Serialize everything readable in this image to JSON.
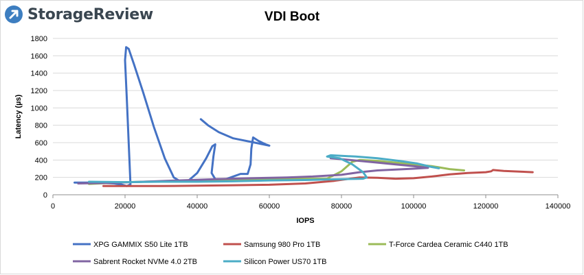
{
  "brand": {
    "name": "StorageReview",
    "logo_color": "#3d7ec0"
  },
  "chart_data": {
    "type": "line",
    "title": "VDI Boot",
    "xlabel": "IOPS",
    "ylabel": "Latency (µs)",
    "xlim": [
      0,
      140000
    ],
    "ylim": [
      0,
      1800
    ],
    "xticks": [
      0,
      20000,
      40000,
      60000,
      80000,
      100000,
      120000,
      140000
    ],
    "yticks": [
      0,
      200,
      400,
      600,
      800,
      1000,
      1200,
      1400,
      1600,
      1800
    ],
    "grid": {
      "horizontal": true,
      "vertical": false
    },
    "legend_position": "bottom",
    "series": [
      {
        "name": "XPG GAMMIX S50 Lite 1TB",
        "color": "#4472c4",
        "points": [
          [
            6000,
            140
          ],
          [
            10000,
            140
          ],
          [
            14000,
            135
          ],
          [
            17000,
            130
          ],
          [
            19000,
            118
          ],
          [
            20500,
            100
          ],
          [
            21500,
            120
          ],
          [
            21000,
            600
          ],
          [
            20500,
            1100
          ],
          [
            20000,
            1550
          ],
          [
            20300,
            1700
          ],
          [
            21000,
            1680
          ],
          [
            22500,
            1500
          ],
          [
            25000,
            1180
          ],
          [
            28000,
            780
          ],
          [
            31000,
            420
          ],
          [
            33500,
            200
          ],
          [
            35500,
            150
          ],
          [
            37500,
            160
          ],
          [
            40000,
            250
          ],
          [
            42500,
            420
          ],
          [
            44200,
            560
          ],
          [
            45000,
            580
          ],
          [
            44500,
            440
          ],
          [
            44000,
            250
          ],
          [
            45000,
            180
          ],
          [
            48000,
            180
          ],
          [
            52000,
            240
          ],
          [
            54000,
            240
          ],
          [
            54800,
            350
          ],
          [
            55000,
            530
          ],
          [
            55500,
            660
          ],
          [
            57000,
            620
          ],
          [
            59000,
            580
          ],
          [
            60000,
            565
          ],
          [
            56000,
            600
          ],
          [
            50000,
            650
          ],
          [
            46000,
            720
          ],
          [
            43000,
            800
          ],
          [
            41000,
            870
          ]
        ]
      },
      {
        "name": "Samsung 980 Pro 1TB",
        "color": "#c0504d",
        "points": [
          [
            14000,
            100
          ],
          [
            20000,
            100
          ],
          [
            30000,
            100
          ],
          [
            40000,
            105
          ],
          [
            50000,
            110
          ],
          [
            60000,
            115
          ],
          [
            70000,
            130
          ],
          [
            78000,
            160
          ],
          [
            85000,
            200
          ],
          [
            90000,
            195
          ],
          [
            95000,
            185
          ],
          [
            100000,
            190
          ],
          [
            105000,
            210
          ],
          [
            110000,
            235
          ],
          [
            115000,
            250
          ],
          [
            120000,
            260
          ],
          [
            121500,
            270
          ],
          [
            122000,
            285
          ],
          [
            125000,
            275
          ],
          [
            130000,
            265
          ],
          [
            133000,
            260
          ]
        ]
      },
      {
        "name": "T-Force Cardea Ceramic C440 1TB",
        "color": "#9bbb59",
        "points": [
          [
            10000,
            125
          ],
          [
            20000,
            145
          ],
          [
            30000,
            155
          ],
          [
            40000,
            160
          ],
          [
            50000,
            170
          ],
          [
            60000,
            180
          ],
          [
            70000,
            185
          ],
          [
            76000,
            185
          ],
          [
            80000,
            270
          ],
          [
            83000,
            380
          ],
          [
            85000,
            400
          ],
          [
            90000,
            390
          ],
          [
            95000,
            370
          ],
          [
            100000,
            350
          ],
          [
            105000,
            330
          ],
          [
            110000,
            295
          ],
          [
            114000,
            280
          ]
        ]
      },
      {
        "name": "Sabrent Rocket NVMe 4.0 2TB",
        "color": "#8064a2",
        "points": [
          [
            7000,
            130
          ],
          [
            15000,
            135
          ],
          [
            25000,
            150
          ],
          [
            35000,
            165
          ],
          [
            45000,
            180
          ],
          [
            55000,
            190
          ],
          [
            65000,
            200
          ],
          [
            72000,
            210
          ],
          [
            80000,
            230
          ],
          [
            85000,
            260
          ],
          [
            90000,
            280
          ],
          [
            95000,
            290
          ],
          [
            100000,
            300
          ],
          [
            104000,
            310
          ],
          [
            100000,
            330
          ],
          [
            95000,
            350
          ],
          [
            90000,
            370
          ],
          [
            85000,
            390
          ],
          [
            80000,
            410
          ],
          [
            77000,
            420
          ]
        ]
      },
      {
        "name": "Silicon Power US70 1TB",
        "color": "#4bacc6",
        "points": [
          [
            10000,
            150
          ],
          [
            20000,
            145
          ],
          [
            30000,
            150
          ],
          [
            40000,
            150
          ],
          [
            50000,
            155
          ],
          [
            60000,
            165
          ],
          [
            70000,
            170
          ],
          [
            76000,
            175
          ],
          [
            80000,
            180
          ],
          [
            86000,
            185
          ],
          [
            87000,
            200
          ],
          [
            86000,
            260
          ],
          [
            83000,
            350
          ],
          [
            79500,
            420
          ],
          [
            76000,
            440
          ],
          [
            77000,
            455
          ],
          [
            84000,
            440
          ],
          [
            90000,
            420
          ],
          [
            96000,
            390
          ],
          [
            101000,
            360
          ],
          [
            105000,
            320
          ],
          [
            107000,
            305
          ]
        ]
      }
    ]
  }
}
